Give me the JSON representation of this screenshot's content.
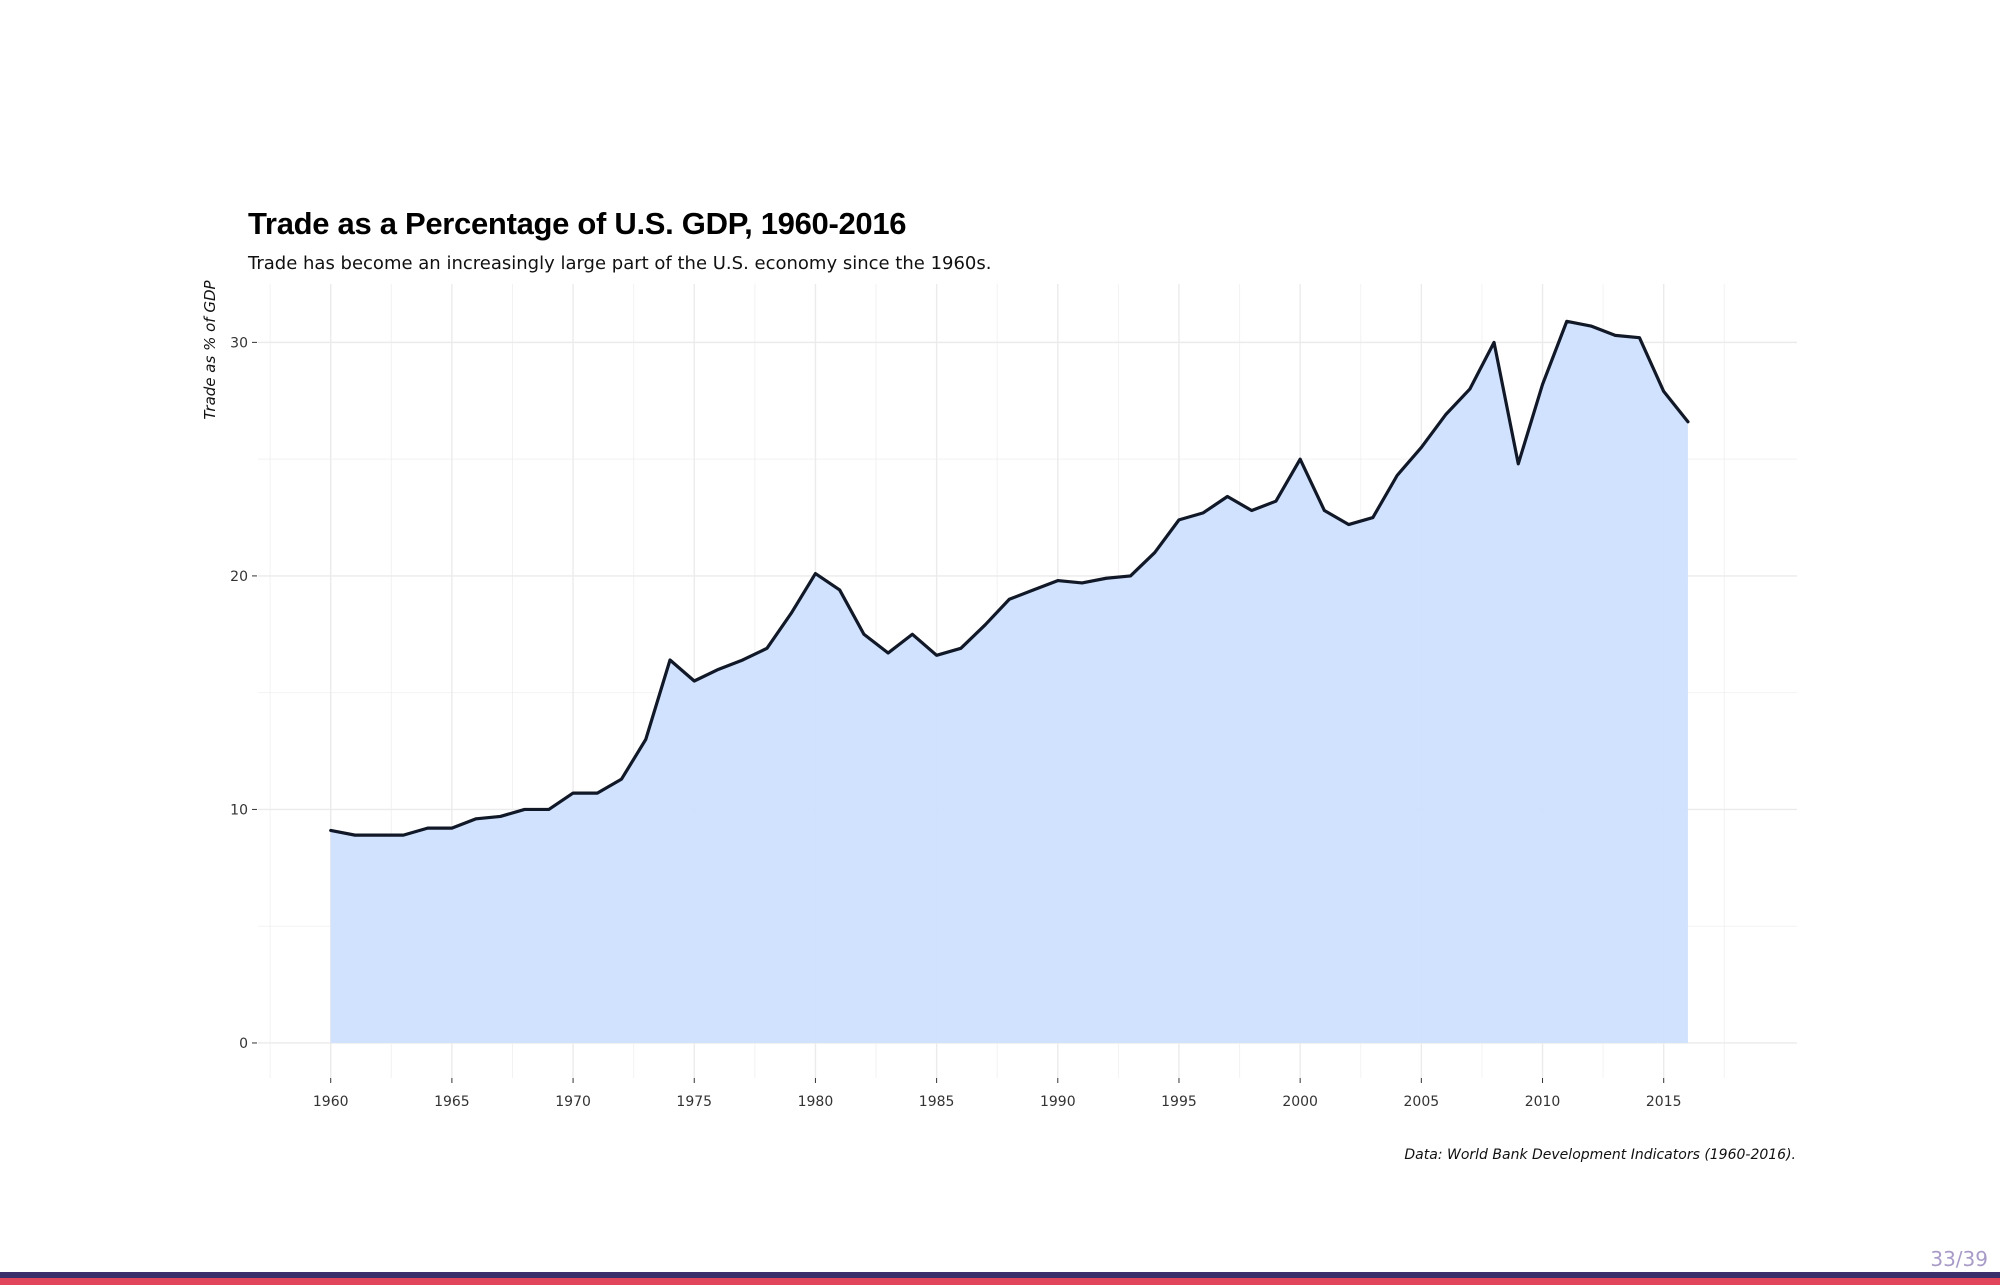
{
  "slide": {
    "page_number": "33/39",
    "colors": {
      "area_fill": "#cfe0ff",
      "line": "#111827",
      "grid": "#ebebeb",
      "footer_dark": "#3b2f6b",
      "footer_accent": "#e0455c"
    }
  },
  "chart_data": {
    "type": "area",
    "title": "Trade as a Percentage of U.S. GDP, 1960-2016",
    "subtitle": "Trade has become an increasingly large part of the U.S. economy since the 1960s.",
    "caption": "Data: World Bank Development Indicators (1960-2016).",
    "xlabel": "",
    "ylabel": "Trade as % of GDP",
    "xlim": [
      1957,
      2020.5
    ],
    "ylim": [
      -1.5,
      32.5
    ],
    "x_ticks": [
      "1960",
      "1965",
      "1970",
      "1975",
      "1980",
      "1985",
      "1990",
      "1995",
      "2000",
      "2005",
      "2010",
      "2015"
    ],
    "y_ticks": [
      "0",
      "10",
      "20",
      "30"
    ],
    "grid": true,
    "legend": "none",
    "x": [
      1960,
      1961,
      1962,
      1963,
      1964,
      1965,
      1966,
      1967,
      1968,
      1969,
      1970,
      1971,
      1972,
      1973,
      1974,
      1975,
      1976,
      1977,
      1978,
      1979,
      1980,
      1981,
      1982,
      1983,
      1984,
      1985,
      1986,
      1987,
      1988,
      1989,
      1990,
      1991,
      1992,
      1993,
      1994,
      1995,
      1996,
      1997,
      1998,
      1999,
      2000,
      2001,
      2002,
      2003,
      2004,
      2005,
      2006,
      2007,
      2008,
      2009,
      2010,
      2011,
      2012,
      2013,
      2014,
      2015,
      2016
    ],
    "y": [
      9.1,
      8.9,
      8.9,
      8.9,
      9.2,
      9.2,
      9.6,
      9.7,
      10.0,
      10.0,
      10.7,
      10.7,
      11.3,
      13.0,
      16.4,
      15.5,
      16.0,
      16.4,
      16.9,
      18.4,
      20.1,
      19.4,
      17.5,
      16.7,
      17.5,
      16.6,
      16.9,
      17.9,
      19.0,
      19.4,
      19.8,
      19.7,
      19.9,
      20.0,
      21.0,
      22.4,
      22.7,
      23.4,
      22.8,
      23.2,
      25.0,
      22.8,
      22.2,
      22.5,
      24.3,
      25.5,
      26.9,
      28.0,
      30.0,
      24.8,
      28.2,
      30.9,
      30.7,
      30.3,
      30.2,
      27.9,
      26.6
    ]
  }
}
